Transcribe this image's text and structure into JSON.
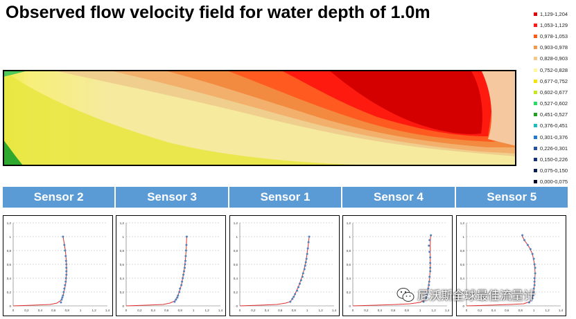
{
  "title": "Observed flow velocity field for water depth of 1.0m",
  "legend": [
    {
      "label": "1,129-1,204",
      "color": "#e00000"
    },
    {
      "label": "1,053-1,129",
      "color": "#ff1a1a"
    },
    {
      "label": "0,978-1,053",
      "color": "#ff5a1a"
    },
    {
      "label": "0,903-0,978",
      "color": "#f59a4a"
    },
    {
      "label": "0,828-0,903",
      "color": "#f5c98a"
    },
    {
      "label": "0,752-0,828",
      "color": "#fff59a"
    },
    {
      "label": "0,677-0,752",
      "color": "#f2e600"
    },
    {
      "label": "0,602-0,677",
      "color": "#c8e61e"
    },
    {
      "label": "0,527-0,602",
      "color": "#28dc64"
    },
    {
      "label": "0,451-0,527",
      "color": "#1ea01e"
    },
    {
      "label": "0,376-0,451",
      "color": "#1ebcbc"
    },
    {
      "label": "0,301-0,376",
      "color": "#1e7ad2"
    },
    {
      "label": "0,226-0,301",
      "color": "#2850a0"
    },
    {
      "label": "0,150-0,226",
      "color": "#143278"
    },
    {
      "label": "0,075-0,150",
      "color": "#0a1e50"
    },
    {
      "label": "0,000-0,075",
      "color": "#000028"
    }
  ],
  "sensor_headers": [
    "Sensor 2",
    "Sensor 3",
    "Sensor 1",
    "Sensor 4",
    "Sensor 5"
  ],
  "watermark": "尼沃斯全球最佳流量计",
  "colors": {
    "header_bg": "#5b9bd5",
    "fit_line": "#e03030",
    "points": "#4f81bd"
  },
  "chart_data": [
    {
      "type": "scatter",
      "title": "Sensor 2",
      "xlim": [
        0,
        1.4
      ],
      "ylim": [
        0,
        1.2
      ],
      "xticks": [
        "0",
        "0,2",
        "0,4",
        "0,6",
        "0,8",
        "1",
        "1,2",
        "1,4"
      ],
      "yticks": [
        "0",
        "0,2",
        "0,4",
        "0,6",
        "0,8",
        "1",
        "1,2"
      ],
      "points": [
        [
          0.71,
          0.05
        ],
        [
          0.72,
          0.09
        ],
        [
          0.73,
          0.12
        ],
        [
          0.74,
          0.15
        ],
        [
          0.75,
          0.2
        ],
        [
          0.76,
          0.25
        ],
        [
          0.77,
          0.3
        ],
        [
          0.78,
          0.35
        ],
        [
          0.785,
          0.4
        ],
        [
          0.79,
          0.45
        ],
        [
          0.79,
          0.5
        ],
        [
          0.79,
          0.55
        ],
        [
          0.79,
          0.6
        ],
        [
          0.785,
          0.65
        ],
        [
          0.78,
          0.72
        ],
        [
          0.77,
          0.8
        ],
        [
          0.76,
          0.88
        ],
        [
          0.74,
          1.0
        ]
      ],
      "fit": [
        [
          0,
          0
        ],
        [
          0.3,
          0.01
        ],
        [
          0.55,
          0.02
        ],
        [
          0.65,
          0.04
        ],
        [
          0.71,
          0.08
        ],
        [
          0.75,
          0.18
        ],
        [
          0.78,
          0.32
        ],
        [
          0.795,
          0.5
        ],
        [
          0.79,
          0.65
        ],
        [
          0.775,
          0.8
        ],
        [
          0.755,
          0.92
        ],
        [
          0.74,
          1.0
        ]
      ]
    },
    {
      "type": "scatter",
      "title": "Sensor 3",
      "xlim": [
        0,
        1.4
      ],
      "ylim": [
        0,
        1.2
      ],
      "xticks": [
        "0",
        "0,2",
        "0,4",
        "0,6",
        "0,8",
        "1",
        "1,2",
        "1,4"
      ],
      "yticks": [
        "0",
        "0,2",
        "0,4",
        "0,6",
        "0,8",
        "1",
        "1,2"
      ],
      "points": [
        [
          0.72,
          0.06
        ],
        [
          0.74,
          0.09
        ],
        [
          0.76,
          0.12
        ],
        [
          0.77,
          0.15
        ],
        [
          0.79,
          0.2
        ],
        [
          0.8,
          0.25
        ],
        [
          0.82,
          0.3
        ],
        [
          0.83,
          0.35
        ],
        [
          0.84,
          0.4
        ],
        [
          0.85,
          0.45
        ],
        [
          0.86,
          0.5
        ],
        [
          0.87,
          0.55
        ],
        [
          0.875,
          0.6
        ],
        [
          0.88,
          0.65
        ],
        [
          0.885,
          0.72
        ],
        [
          0.89,
          0.8
        ],
        [
          0.895,
          0.88
        ],
        [
          0.9,
          1.0
        ]
      ],
      "fit": [
        [
          0,
          0
        ],
        [
          0.3,
          0.01
        ],
        [
          0.55,
          0.02
        ],
        [
          0.65,
          0.04
        ],
        [
          0.72,
          0.07
        ],
        [
          0.77,
          0.15
        ],
        [
          0.82,
          0.3
        ],
        [
          0.86,
          0.5
        ],
        [
          0.88,
          0.67
        ],
        [
          0.89,
          0.8
        ],
        [
          0.9,
          1.0
        ]
      ]
    },
    {
      "type": "scatter",
      "title": "Sensor 1",
      "xlim": [
        0,
        1.4
      ],
      "ylim": [
        0,
        1.2
      ],
      "xticks": [
        "0",
        "0,2",
        "0,4",
        "0,6",
        "0,8",
        "1",
        "1,2",
        "1,4"
      ],
      "yticks": [
        "0",
        "0,2",
        "0,4",
        "0,6",
        "0,8",
        "1",
        "1,2"
      ],
      "points": [
        [
          0.75,
          0.06
        ],
        [
          0.78,
          0.1
        ],
        [
          0.8,
          0.13
        ],
        [
          0.82,
          0.17
        ],
        [
          0.85,
          0.22
        ],
        [
          0.87,
          0.27
        ],
        [
          0.89,
          0.32
        ],
        [
          0.91,
          0.37
        ],
        [
          0.93,
          0.42
        ],
        [
          0.94,
          0.47
        ],
        [
          0.96,
          0.53
        ],
        [
          0.97,
          0.58
        ],
        [
          0.98,
          0.63
        ],
        [
          0.99,
          0.68
        ],
        [
          1.0,
          0.75
        ],
        [
          1.01,
          0.83
        ],
        [
          1.02,
          0.92
        ],
        [
          1.03,
          1.0
        ]
      ],
      "fit": [
        [
          0,
          0
        ],
        [
          0.3,
          0.01
        ],
        [
          0.55,
          0.02
        ],
        [
          0.68,
          0.04
        ],
        [
          0.75,
          0.06
        ],
        [
          0.81,
          0.15
        ],
        [
          0.88,
          0.3
        ],
        [
          0.94,
          0.47
        ],
        [
          0.98,
          0.63
        ],
        [
          1.01,
          0.83
        ],
        [
          1.03,
          1.0
        ]
      ]
    },
    {
      "type": "scatter",
      "title": "Sensor 4",
      "xlim": [
        0,
        1.4
      ],
      "ylim": [
        0,
        1.2
      ],
      "xticks": [
        "0",
        "0,2",
        "0,4",
        "0,6",
        "0,8",
        "1",
        "1,2",
        "1,4"
      ],
      "yticks": [
        "0",
        "0,2",
        "0,4",
        "0,6",
        "0,8",
        "1",
        "1,2"
      ],
      "points": [
        [
          1.05,
          0.06
        ],
        [
          1.08,
          0.09
        ],
        [
          1.09,
          0.12
        ],
        [
          1.1,
          0.16
        ],
        [
          1.11,
          0.2
        ],
        [
          1.12,
          0.25
        ],
        [
          1.13,
          0.3
        ],
        [
          1.135,
          0.35
        ],
        [
          1.14,
          0.42
        ],
        [
          1.15,
          0.5
        ],
        [
          1.15,
          0.55
        ],
        [
          1.15,
          0.62
        ],
        [
          1.15,
          0.7
        ],
        [
          1.14,
          0.78
        ],
        [
          1.13,
          0.87
        ],
        [
          1.14,
          0.95
        ],
        [
          1.16,
          1.02
        ]
      ],
      "fit": [
        [
          0,
          0
        ],
        [
          0.35,
          0.01
        ],
        [
          0.65,
          0.02
        ],
        [
          0.85,
          0.03
        ],
        [
          1.0,
          0.05
        ],
        [
          1.08,
          0.09
        ],
        [
          1.11,
          0.2
        ],
        [
          1.14,
          0.38
        ],
        [
          1.15,
          0.55
        ],
        [
          1.15,
          0.72
        ],
        [
          1.15,
          0.88
        ],
        [
          1.155,
          1.02
        ]
      ]
    },
    {
      "type": "scatter",
      "title": "Sensor 5",
      "xlim": [
        0,
        1.4
      ],
      "ylim": [
        0,
        1.2
      ],
      "xticks": [
        "0",
        "0,2",
        "0,4",
        "0,6",
        "0,8",
        "1",
        "1,2",
        "1,4"
      ],
      "yticks": [
        "0",
        "0,2",
        "0,4",
        "0,6",
        "0,8",
        "1",
        "1,2"
      ],
      "points": [
        [
          0.93,
          0.05
        ],
        [
          0.96,
          0.08
        ],
        [
          0.98,
          0.11
        ],
        [
          0.99,
          0.15
        ],
        [
          1.0,
          0.2
        ],
        [
          1.0,
          0.25
        ],
        [
          1.01,
          0.3
        ],
        [
          1.01,
          0.35
        ],
        [
          1.01,
          0.4
        ],
        [
          1.02,
          0.47
        ],
        [
          1.02,
          0.55
        ],
        [
          1.01,
          0.6
        ],
        [
          1.0,
          0.68
        ],
        [
          0.98,
          0.75
        ],
        [
          0.95,
          0.82
        ],
        [
          0.91,
          0.88
        ],
        [
          0.86,
          0.95
        ],
        [
          0.83,
          1.02
        ]
      ],
      "fit": [
        [
          0,
          0
        ],
        [
          0.35,
          0.01
        ],
        [
          0.65,
          0.02
        ],
        [
          0.85,
          0.03
        ],
        [
          0.94,
          0.06
        ],
        [
          0.99,
          0.15
        ],
        [
          1.01,
          0.3
        ],
        [
          1.02,
          0.47
        ],
        [
          1.01,
          0.6
        ],
        [
          0.98,
          0.75
        ],
        [
          0.93,
          0.85
        ],
        [
          0.86,
          0.95
        ],
        [
          0.82,
          1.02
        ]
      ]
    }
  ]
}
